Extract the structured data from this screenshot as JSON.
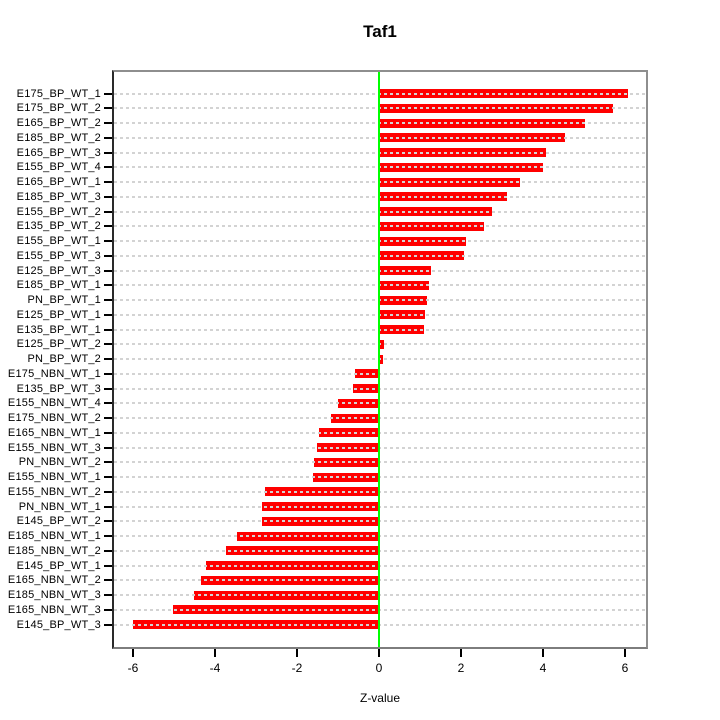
{
  "title": "Taf1",
  "xlabel": "Z-value",
  "colors": {
    "bar": "#ff0000",
    "zero_line": "#00ff00",
    "grid": "#d3d3d3",
    "box_border": "#8e8e8e",
    "axis_text": "#000000"
  },
  "chart_data": {
    "type": "bar",
    "orientation": "horizontal",
    "title": "Taf1",
    "xlabel": "Z-value",
    "ylabel": "",
    "x_ticks": [
      -6,
      -4,
      -2,
      0,
      2,
      4,
      6
    ],
    "xlim": [
      -6.5,
      6.55
    ],
    "grid": "dotted horizontal line per category, drawn over bars",
    "zero_reference_line": 0,
    "legend": "none",
    "categories": [
      "E175_BP_WT_1",
      "E175_BP_WT_2",
      "E165_BP_WT_2",
      "E185_BP_WT_2",
      "E165_BP_WT_3",
      "E155_BP_WT_4",
      "E165_BP_WT_1",
      "E185_BP_WT_3",
      "E155_BP_WT_2",
      "E135_BP_WT_2",
      "E155_BP_WT_1",
      "E155_BP_WT_3",
      "E125_BP_WT_3",
      "E185_BP_WT_1",
      "PN_BP_WT_1",
      "E125_BP_WT_1",
      "E135_BP_WT_1",
      "E125_BP_WT_2",
      "PN_BP_WT_2",
      "E175_NBN_WT_1",
      "E135_BP_WT_3",
      "E155_NBN_WT_4",
      "E175_NBN_WT_2",
      "E165_NBN_WT_1",
      "E155_NBN_WT_3",
      "PN_NBN_WT_2",
      "E155_NBN_WT_1",
      "E155_NBN_WT_2",
      "PN_NBN_WT_1",
      "E145_BP_WT_2",
      "E185_NBN_WT_1",
      "E185_NBN_WT_2",
      "E145_BP_WT_1",
      "E165_NBN_WT_2",
      "E185_NBN_WT_3",
      "E165_NBN_WT_3",
      "E145_BP_WT_3"
    ],
    "values": [
      6.07,
      5.7,
      5.02,
      4.54,
      4.07,
      4.01,
      3.44,
      3.11,
      2.76,
      2.56,
      2.12,
      2.07,
      1.28,
      1.22,
      1.17,
      1.11,
      1.1,
      0.12,
      0.09,
      -0.59,
      -0.63,
      -1.0,
      -1.16,
      -1.46,
      -1.51,
      -1.59,
      -1.61,
      -2.78,
      -2.85,
      -2.86,
      -3.46,
      -3.73,
      -4.22,
      -4.34,
      -4.51,
      -5.02,
      -6.01
    ]
  }
}
